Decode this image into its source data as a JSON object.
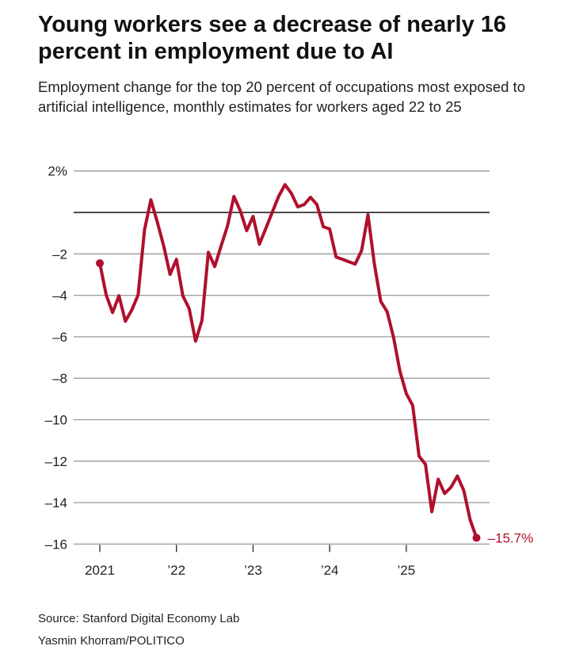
{
  "chart_data": {
    "type": "line",
    "title": "Young workers see a decrease of nearly 16 percent in employment due to AI",
    "subtitle": "Employment change for the top 20 percent of occupations most exposed to artificial intelligence, monthly estimates for workers aged 22 to 25",
    "xlabel": "",
    "ylabel": "",
    "ylim": [
      -16,
      2
    ],
    "yticks": [
      2,
      -2,
      -4,
      -6,
      -8,
      -10,
      -12,
      -14,
      -16
    ],
    "ytick_labels": [
      "2%",
      "–2",
      "–4",
      "–6",
      "–8",
      "–10",
      "–12",
      "–14",
      "–16"
    ],
    "xticks": [
      "2021-01",
      "2022-01",
      "2023-01",
      "2024-01",
      "2025-01"
    ],
    "xtick_labels": [
      "2021",
      "’22",
      "’23",
      "’24",
      "’25"
    ],
    "grid": true,
    "zero_line": true,
    "color": "#b0102d",
    "start_date": "2021-01",
    "frequency": "monthly",
    "values": [
      -2.45,
      -3.98,
      -4.83,
      -4.02,
      -5.25,
      -4.71,
      -3.98,
      -0.84,
      0.61,
      -0.46,
      -1.61,
      -2.99,
      -2.26,
      -4.02,
      -4.64,
      -6.21,
      -5.21,
      -1.92,
      -2.61,
      -1.61,
      -0.65,
      0.77,
      0.08,
      -0.88,
      -0.19,
      -1.53,
      -0.77,
      0,
      0.77,
      1.34,
      0.92,
      0.27,
      0.38,
      0.73,
      0.38,
      -0.69,
      -0.8,
      -2.15,
      -2.26,
      -2.38,
      -2.49,
      -1.84,
      -0.11,
      -2.49,
      -4.29,
      -4.79,
      -6.02,
      -7.66,
      -8.74,
      -9.31,
      -11.76,
      -12.15,
      -14.44,
      -12.87,
      -13.56,
      -13.26,
      -12.72,
      -13.41,
      -14.83,
      -15.7
    ],
    "end_label": "–15.7%"
  },
  "footer": {
    "source": "Source: Stanford Digital Economy Lab",
    "credit": "Yasmin Khorram/POLITICO"
  }
}
